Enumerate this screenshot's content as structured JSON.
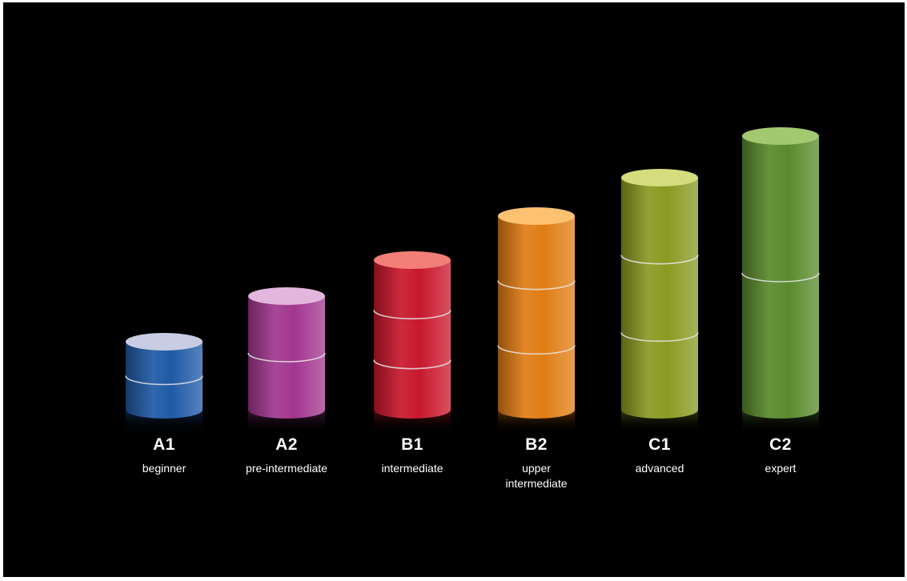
{
  "levels": [
    {
      "code": "A1",
      "name": "beginner",
      "segments": 2,
      "color": "#1f5aa6",
      "top_color": "#c8cde3"
    },
    {
      "code": "A2",
      "name": "pre-intermediate",
      "segments": 2,
      "color": "#a1378f",
      "top_color": "#e3b6dd"
    },
    {
      "code": "B1",
      "name": "intermediate",
      "segments": 3,
      "color": "#c8182c",
      "top_color": "#f27f77"
    },
    {
      "code": "B2",
      "name": "upper intermediate",
      "segments": 3,
      "color": "#e07d14",
      "top_color": "#fcc271"
    },
    {
      "code": "C1",
      "name": "advanced",
      "segments": 3,
      "color": "#8a9a22",
      "top_color": "#d4dc7e"
    },
    {
      "code": "C2",
      "name": "expert",
      "segments": 2,
      "color": "#5a8a2c",
      "top_color": "#a3c970"
    }
  ]
}
